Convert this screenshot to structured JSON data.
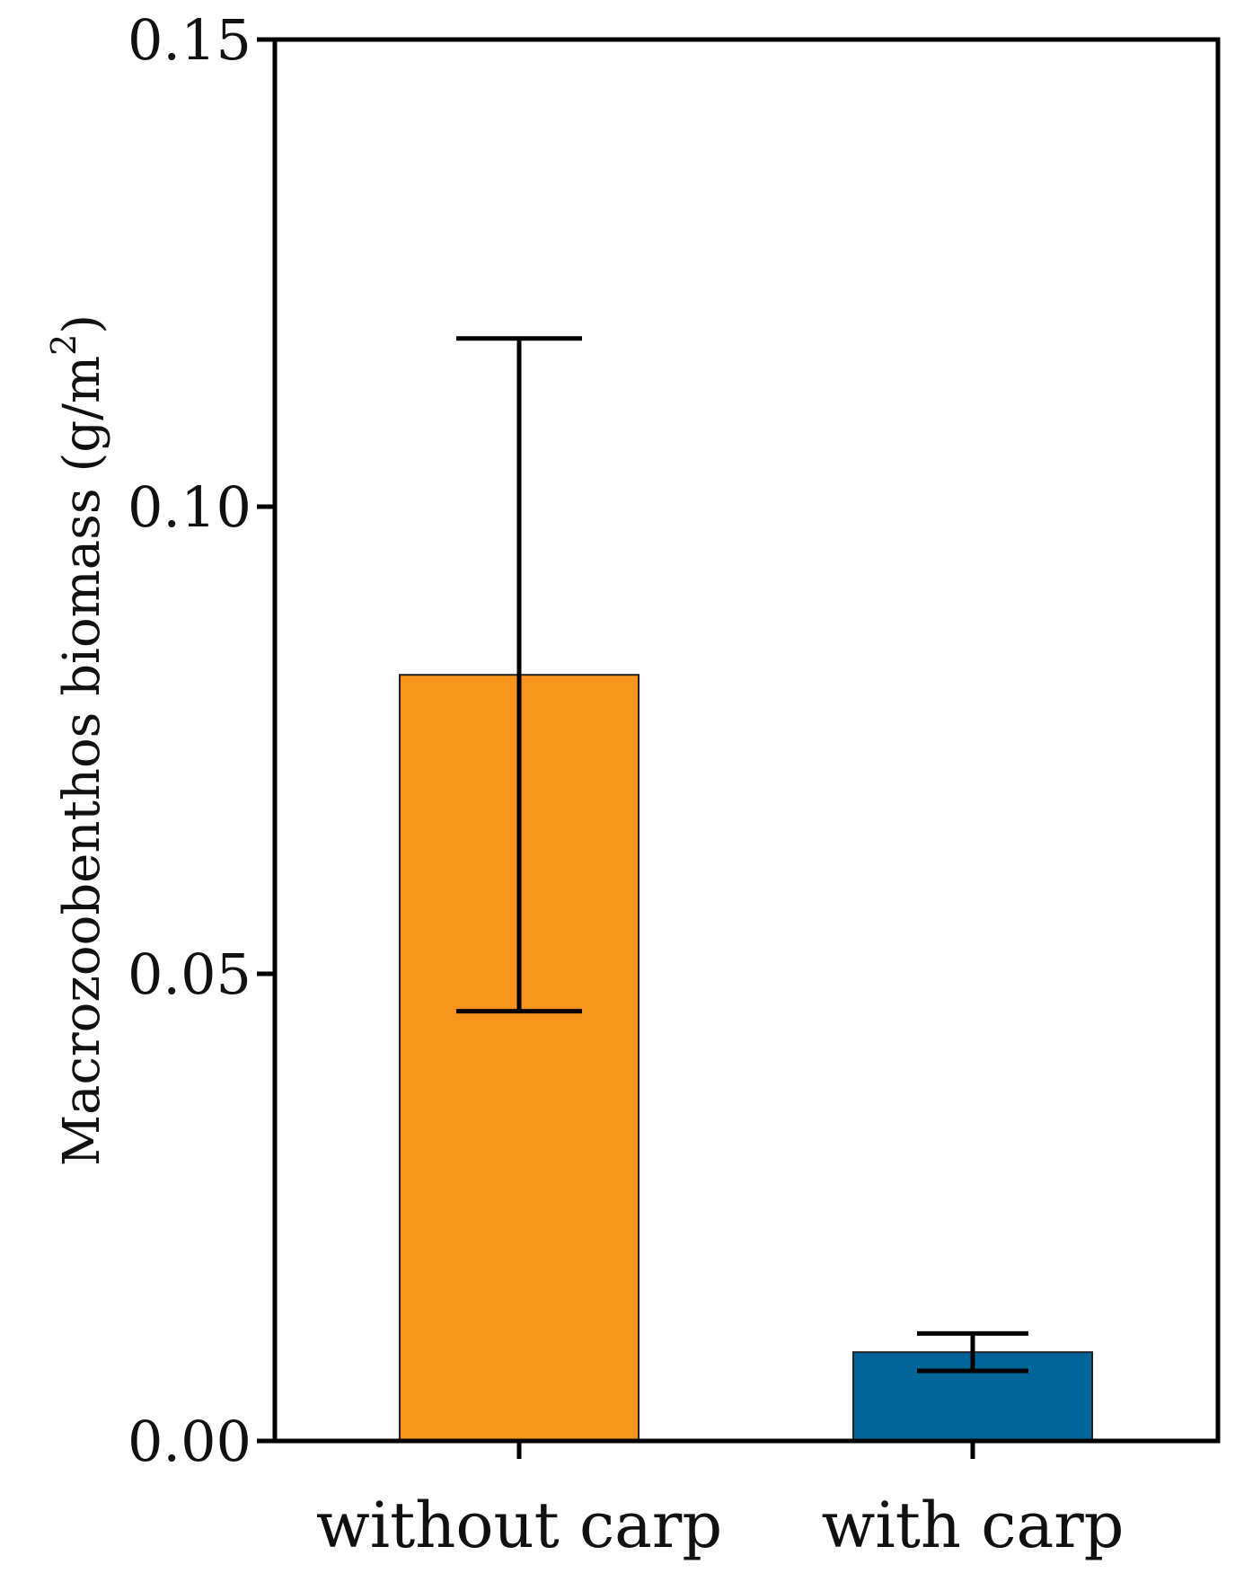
{
  "chart_data": {
    "type": "bar",
    "categories": [
      "without carp",
      "with carp"
    ],
    "values": [
      0.082,
      0.0095
    ],
    "error_high": [
      0.118,
      0.0115
    ],
    "error_low": [
      0.046,
      0.0075
    ],
    "colors": [
      "#F7941D",
      "#006699"
    ],
    "ylabel": "Macrozoobenthos biomass (g/m",
    "ylabel_superscript": "2",
    "ylabel_close": ")",
    "ylim": [
      0,
      0.15
    ],
    "yticks": [
      0.0,
      0.05,
      0.1,
      0.15
    ],
    "ytick_labels": [
      "0.00",
      "0.05",
      "0.10",
      "0.15"
    ],
    "xlabel": "",
    "grid": false
  }
}
